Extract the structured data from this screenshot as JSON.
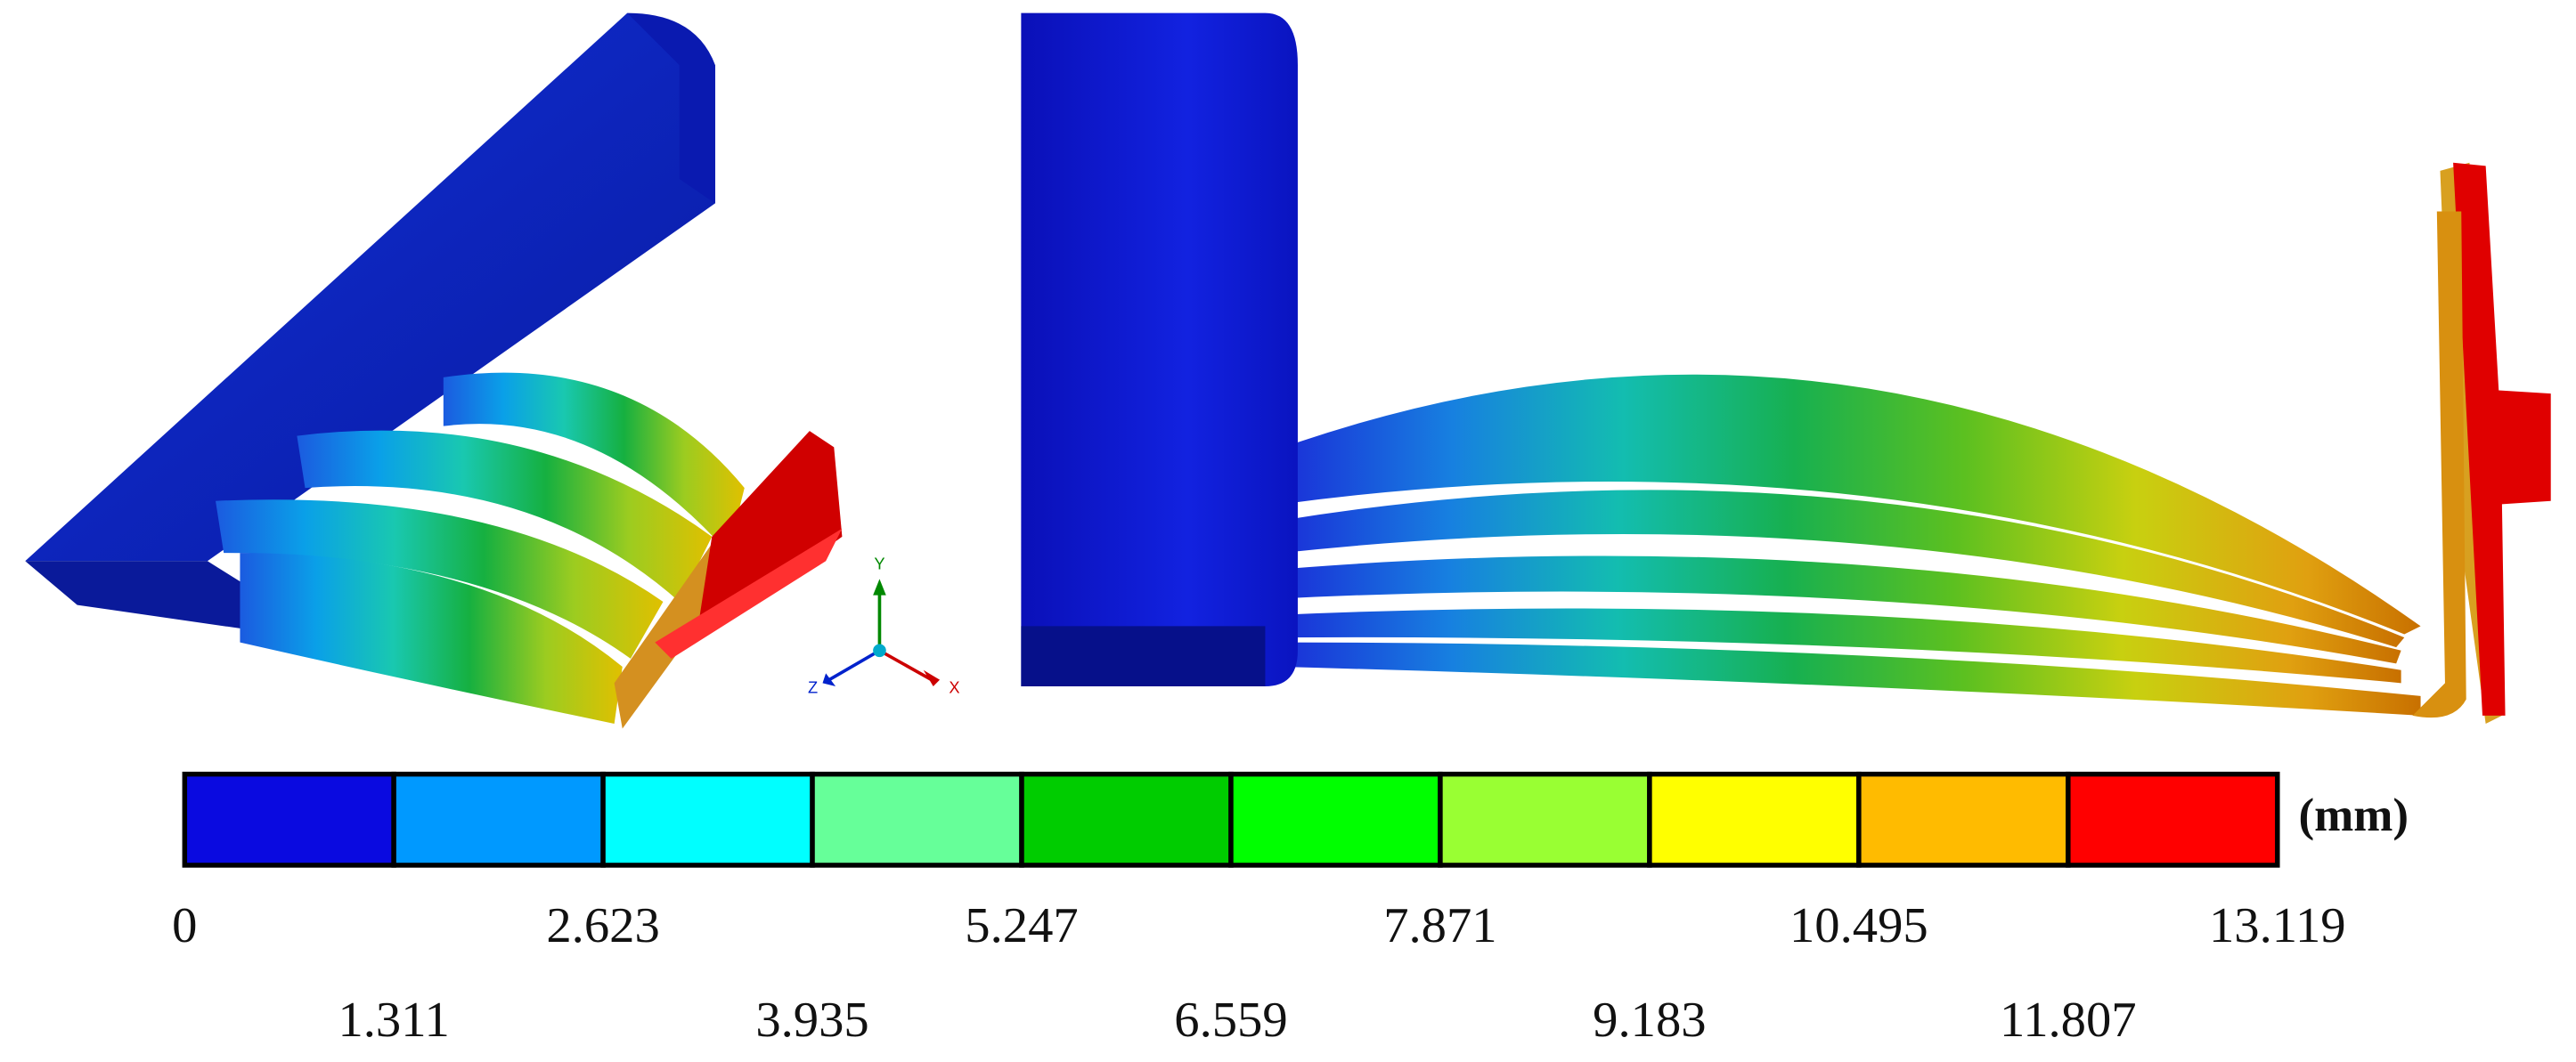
{
  "colorbar": {
    "unit": "(mm)",
    "colors": [
      "#0a0ae0",
      "#0099ff",
      "#00ffff",
      "#66ff99",
      "#00cc00",
      "#00ff00",
      "#99ff33",
      "#ffff00",
      "#ffbb00",
      "#ff0000"
    ],
    "ticks": [
      0,
      1.311,
      2.623,
      3.935,
      5.247,
      6.559,
      7.871,
      9.183,
      10.495,
      11.807,
      13.119
    ]
  },
  "triad": {
    "y": "Y",
    "z": "Z",
    "x": "X"
  }
}
